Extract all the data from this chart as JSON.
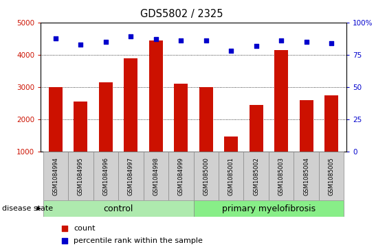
{
  "title": "GDS5802 / 2325",
  "samples": [
    "GSM1084994",
    "GSM1084995",
    "GSM1084996",
    "GSM1084997",
    "GSM1084998",
    "GSM1084999",
    "GSM1085000",
    "GSM1085001",
    "GSM1085002",
    "GSM1085003",
    "GSM1085004",
    "GSM1085005"
  ],
  "bar_values": [
    3000,
    2550,
    3150,
    3900,
    4450,
    3100,
    3000,
    1480,
    2450,
    4150,
    2600,
    2750
  ],
  "dot_values": [
    4500,
    4320,
    4400,
    4560,
    4480,
    4450,
    4450,
    4120,
    4280,
    4450,
    4400,
    4350
  ],
  "bar_color": "#cc1100",
  "dot_color": "#0000cc",
  "ylim_left": [
    1000,
    5000
  ],
  "ylim_right": [
    0,
    100
  ],
  "yticks_left": [
    1000,
    2000,
    3000,
    4000,
    5000
  ],
  "yticks_right": [
    0,
    25,
    50,
    75,
    100
  ],
  "control_samples": 6,
  "control_label": "control",
  "disease_label": "primary myelofibrosis",
  "disease_state_label": "disease state",
  "legend_count": "count",
  "legend_percentile": "percentile rank within the sample",
  "control_bg": "#aeeaae",
  "disease_bg": "#88ee88",
  "tick_bg": "#d0d0d0",
  "plot_bg": "#ffffff",
  "grid_color": "#000000",
  "bar_bottom": 1000
}
